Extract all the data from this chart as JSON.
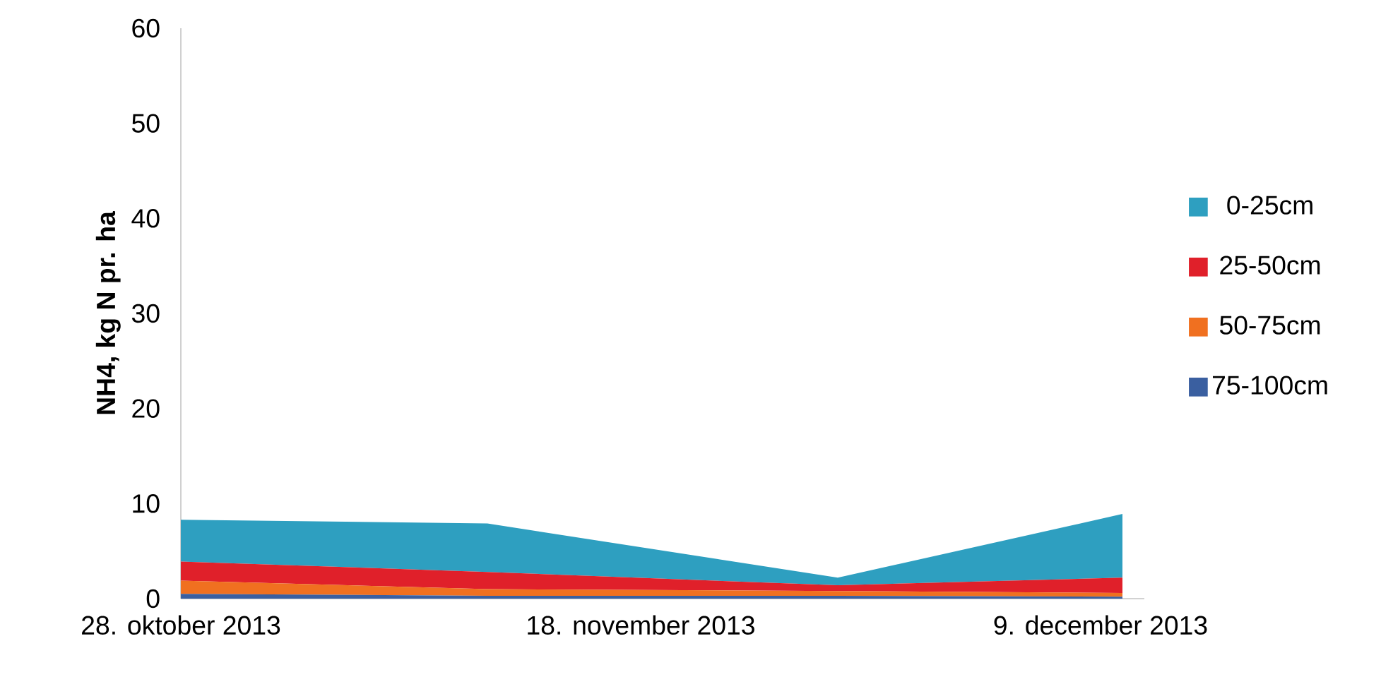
{
  "chart_data": {
    "type": "area",
    "stacked": true,
    "ylabel": "NH4, kg N pr. ha",
    "x": [
      "2013-10-28",
      "2013-11-11",
      "2013-11-27",
      "2013-12-10"
    ],
    "xlim": [
      "2013-10-28",
      "2013-12-11"
    ],
    "xticks": [
      {
        "value": "2013-10-28",
        "label": "28. oktober 2013"
      },
      {
        "value": "2013-11-18",
        "label": "18. november 2013"
      },
      {
        "value": "2013-12-09",
        "label": "9. december 2013"
      }
    ],
    "ylim": [
      0,
      60
    ],
    "yticks": [
      0,
      10,
      20,
      30,
      40,
      50,
      60
    ],
    "legend": "right",
    "grid": false,
    "marker": "none",
    "series": [
      {
        "name": "75-100cm",
        "color": "#3a5fa0",
        "values": [
          0.5,
          0.3,
          0.3,
          0.2
        ]
      },
      {
        "name": "50-75cm",
        "color": "#f07020",
        "values": [
          1.4,
          0.7,
          0.5,
          0.4
        ]
      },
      {
        "name": "25-50cm",
        "color": "#e0202a",
        "values": [
          2.0,
          1.8,
          0.6,
          1.6
        ]
      },
      {
        "name": "0-25cm",
        "color": "#2e9fc0",
        "values": [
          4.4,
          5.1,
          0.8,
          6.7
        ]
      }
    ]
  }
}
